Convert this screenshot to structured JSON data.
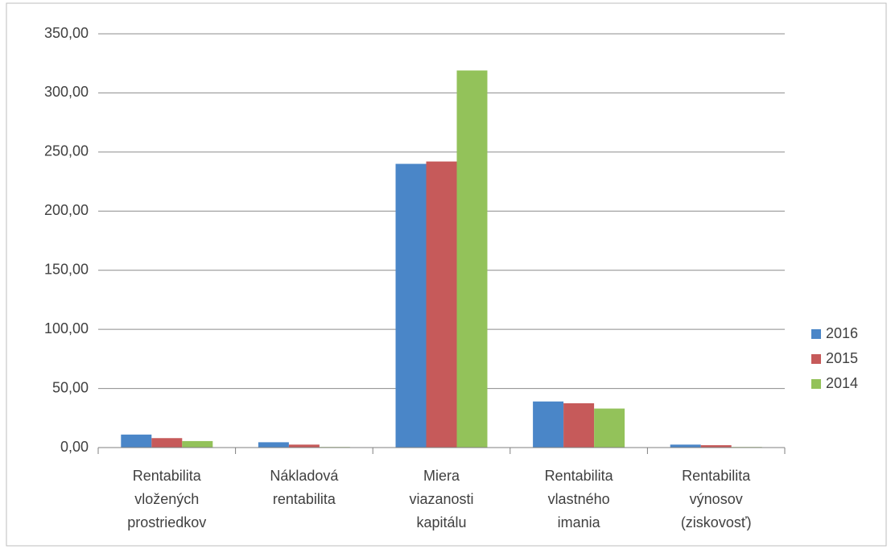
{
  "chart_data": {
    "type": "bar",
    "categories": [
      [
        "Rentabilita",
        "vložených",
        "prostriedkov"
      ],
      [
        "Nákladová",
        "rentabilita"
      ],
      [
        "Miera",
        "viazanosti",
        "kapitálu"
      ],
      [
        "Rentabilita",
        "vlastného",
        "imania"
      ],
      [
        "Rentabilita",
        "výnosov",
        "(ziskovosť)"
      ]
    ],
    "series": [
      {
        "name": "2016",
        "color": "#4a86c8",
        "values": [
          11,
          4.5,
          240,
          39,
          2.5
        ]
      },
      {
        "name": "2015",
        "color": "#c65a5a",
        "values": [
          8,
          2.5,
          242,
          37.5,
          2
        ]
      },
      {
        "name": "2014",
        "color": "#93c25a",
        "values": [
          5.5,
          0.5,
          319,
          33,
          0.5
        ]
      }
    ],
    "ylim": [
      0,
      350
    ],
    "yticks": [
      {
        "value": 0,
        "label": "0,00"
      },
      {
        "value": 50,
        "label": "50,00"
      },
      {
        "value": 100,
        "label": "100,00"
      },
      {
        "value": 150,
        "label": "150,00"
      },
      {
        "value": 200,
        "label": "200,00"
      },
      {
        "value": 250,
        "label": "250,00"
      },
      {
        "value": 300,
        "label": "300,00"
      },
      {
        "value": 350,
        "label": "350,00"
      }
    ],
    "grid": true,
    "legend": "right"
  }
}
